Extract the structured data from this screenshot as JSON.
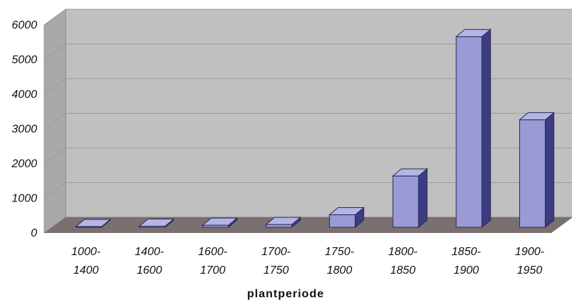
{
  "chart_data": {
    "type": "bar",
    "style": "3d",
    "categories": [
      [
        "1000-",
        "1400"
      ],
      [
        "1400-",
        "1600"
      ],
      [
        "1600-",
        "1700"
      ],
      [
        "1700-",
        "1750"
      ],
      [
        "1750-",
        "1800"
      ],
      [
        "1800-",
        "1850"
      ],
      [
        "1850-",
        "1900"
      ],
      [
        "1900-",
        "1950"
      ]
    ],
    "values": [
      20,
      30,
      60,
      80,
      360,
      1480,
      5500,
      3100
    ],
    "xlabel": "plantperiode",
    "ylabel": "",
    "title": "",
    "ylim": [
      0,
      6000
    ],
    "yticks": [
      "0",
      "1000",
      "2000",
      "3000",
      "4000",
      "5000",
      "6000"
    ],
    "grid": true,
    "colors": {
      "bar_front": "#9a9ad6",
      "bar_side": "#3c3c82",
      "bar_top": "#b4b4e6",
      "wall": "#c0c0c0",
      "floor": "#7b6f6f",
      "gridline": "#9a9a9a"
    }
  }
}
